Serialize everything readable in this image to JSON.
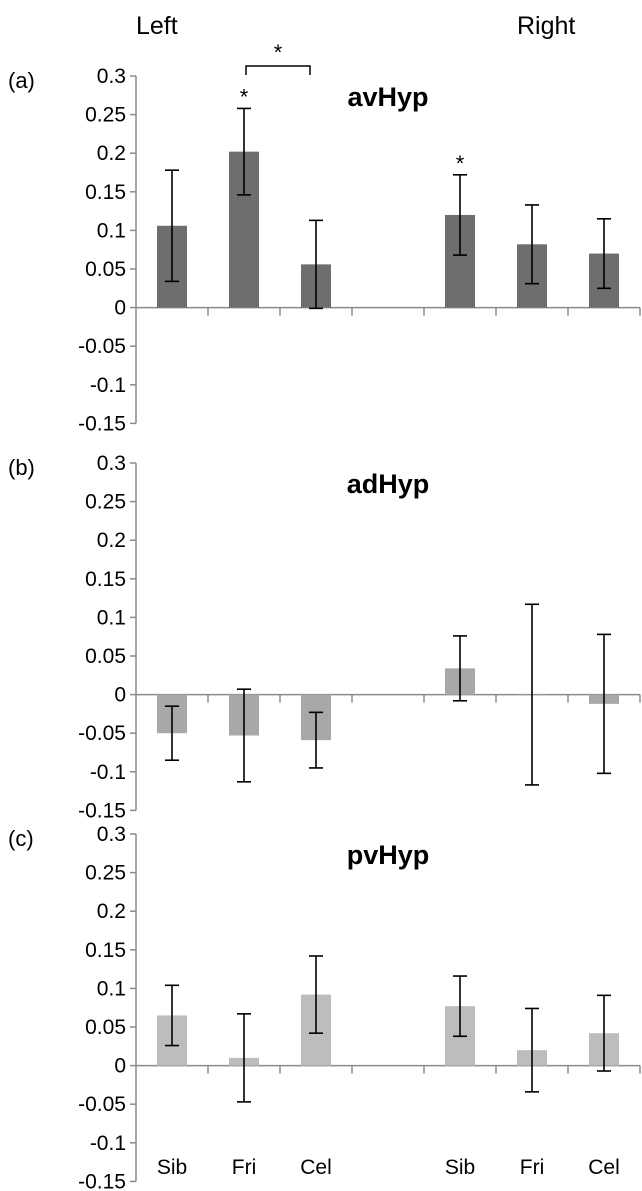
{
  "figure": {
    "side_labels": [
      "Left",
      "Right"
    ]
  },
  "chart_data": [
    {
      "type": "bar",
      "panel_label": "(a)",
      "title": "avHyp",
      "categories": [
        "Sib",
        "Fri",
        "Cel",
        "",
        "Sib",
        "Fri",
        "Cel"
      ],
      "values": [
        0.106,
        0.202,
        0.056,
        null,
        0.12,
        0.082,
        0.07
      ],
      "errors": [
        0.072,
        0.056,
        0.057,
        null,
        0.052,
        0.051,
        0.045
      ],
      "ylim": [
        -0.15,
        0.3
      ],
      "yticks": [
        "0.3",
        "0.25",
        "0.2",
        "0.15",
        "0.1",
        "0.05",
        "0",
        "-0.05",
        "-0.1",
        "-0.15"
      ],
      "bar_color": "#6e6e6e",
      "annotations": [
        {
          "text": "*",
          "bar": 1
        },
        {
          "text": "*",
          "bar": 4
        },
        {
          "text": "*",
          "bracket": [
            1,
            2
          ]
        }
      ]
    },
    {
      "type": "bar",
      "panel_label": "(b)",
      "title": "adHyp",
      "categories": [
        "Sib",
        "Fri",
        "Cel",
        "",
        "Sib",
        "Fri",
        "Cel"
      ],
      "values": [
        -0.05,
        -0.053,
        -0.059,
        null,
        0.034,
        0.0,
        -0.012
      ],
      "errors": [
        0.035,
        0.06,
        0.036,
        null,
        0.042,
        0.117,
        0.09
      ],
      "ylim": [
        -0.15,
        0.3
      ],
      "yticks": [
        "0.3",
        "0.25",
        "0.2",
        "0.15",
        "0.1",
        "0.05",
        "0",
        "-0.05",
        "-0.1",
        "-0.15"
      ],
      "bar_color": "#a8a8a8",
      "annotations": []
    },
    {
      "type": "bar",
      "panel_label": "(c)",
      "title": "pvHyp",
      "categories": [
        "Sib",
        "Fri",
        "Cel",
        "",
        "Sib",
        "Fri",
        "Cel"
      ],
      "values": [
        0.065,
        0.01,
        0.092,
        null,
        0.077,
        0.02,
        0.042
      ],
      "errors": [
        0.039,
        0.057,
        0.05,
        null,
        0.039,
        0.054,
        0.049
      ],
      "ylim": [
        -0.15,
        0.3
      ],
      "yticks": [
        "0.3",
        "0.25",
        "0.2",
        "0.15",
        "0.1",
        "0.05",
        "0",
        "-0.05",
        "-0.1",
        "-0.15"
      ],
      "bar_color": "#bdbdbd",
      "annotations": []
    }
  ]
}
